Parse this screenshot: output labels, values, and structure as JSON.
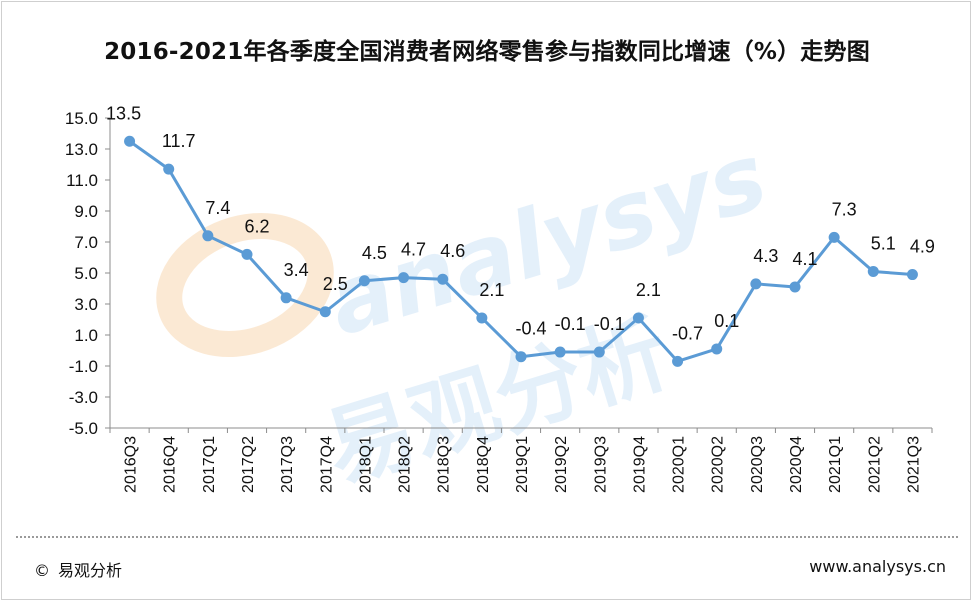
{
  "chart_data": {
    "type": "line",
    "title": "2016-2021年各季度全国消费者网络零售参与指数同比增速（%）走势图",
    "categories": [
      "2016Q3",
      "2016Q4",
      "2017Q1",
      "2017Q2",
      "2017Q3",
      "2017Q4",
      "2018Q1",
      "2018Q2",
      "2018Q3",
      "2018Q4",
      "2019Q1",
      "2019Q2",
      "2019Q3",
      "2019Q4",
      "2020Q1",
      "2020Q2",
      "2020Q3",
      "2020Q4",
      "2021Q1",
      "2021Q2",
      "2021Q3"
    ],
    "values": [
      13.5,
      11.7,
      7.4,
      6.2,
      3.4,
      2.5,
      4.5,
      4.7,
      4.6,
      2.1,
      -0.4,
      -0.1,
      -0.1,
      2.1,
      -0.7,
      0.1,
      4.3,
      4.1,
      7.3,
      5.1,
      4.9
    ],
    "value_labels": [
      "13.5",
      "11.7",
      "7.4",
      "6.2",
      "3.4",
      "2.5",
      "4.5",
      "4.7",
      "4.6",
      "2.1",
      "-0.4",
      "-0.1",
      "-0.1",
      "2.1",
      "-0.7",
      "0.1",
      "4.3",
      "4.1",
      "7.3",
      "5.1",
      "4.9"
    ],
    "ylim": [
      -5.0,
      15.0
    ],
    "yticks": [
      "15.0",
      "13.0",
      "11.0",
      "9.0",
      "7.0",
      "5.0",
      "3.0",
      "1.0",
      "-1.0",
      "-3.0",
      "-5.0"
    ],
    "line_color": "#5b9bd5",
    "grid": false,
    "legend": "none"
  },
  "watermark": {
    "latin": "analysys",
    "cjk": "易观分析"
  },
  "footer": {
    "copyright_symbol": "©",
    "brand": "易观分析",
    "url": "www.analysys.cn"
  }
}
